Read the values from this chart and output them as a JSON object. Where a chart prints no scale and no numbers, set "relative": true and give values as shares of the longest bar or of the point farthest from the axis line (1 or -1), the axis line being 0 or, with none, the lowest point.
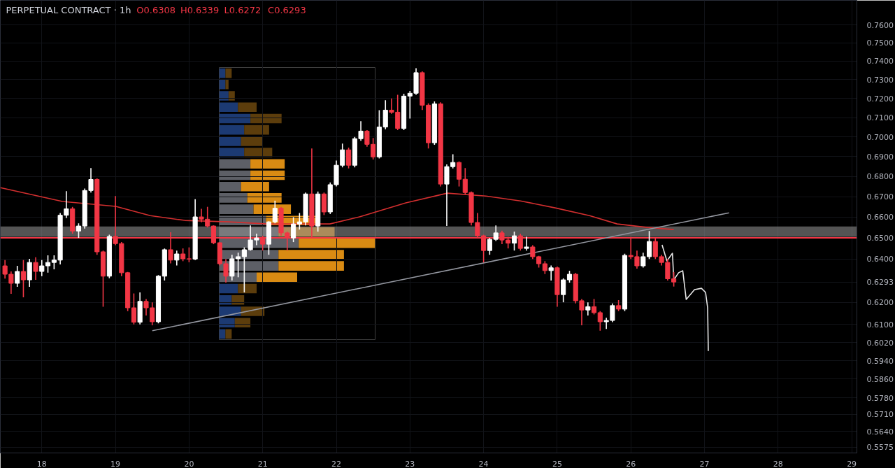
{
  "chart_data": [
    {
      "type": "candlestick",
      "title": "PERPETUAL CONTRACT · 1h",
      "annotations": [
        "O0.6308",
        "H0.6339",
        "L0.6272",
        "C0.6293"
      ],
      "x": [
        17.5,
        17.583,
        17.667,
        17.75,
        17.833,
        17.917,
        18,
        18.083,
        18.167,
        18.25,
        18.333,
        18.417,
        18.5,
        18.583,
        18.667,
        18.75,
        18.833,
        18.917,
        19,
        19.083,
        19.167,
        19.25,
        19.333,
        19.417,
        19.5,
        19.583,
        19.667,
        19.75,
        19.833,
        19.917,
        20,
        20.083,
        20.167,
        20.25,
        20.333,
        20.417,
        20.5,
        20.583,
        20.667,
        20.75,
        20.833,
        20.917,
        21,
        21.083,
        21.167,
        21.25,
        21.333,
        21.417,
        21.5,
        21.583,
        21.667,
        21.75,
        21.833,
        21.917,
        22,
        22.083,
        22.167,
        22.25,
        22.333,
        22.417,
        22.5,
        22.583,
        22.667,
        22.75,
        22.833,
        22.917,
        23,
        23.083,
        23.167,
        23.25,
        23.333,
        23.417,
        23.5,
        23.583,
        23.667,
        23.75,
        23.833,
        23.917,
        24,
        24.083,
        24.167,
        24.25,
        24.333,
        24.417,
        24.5,
        24.583,
        24.667,
        24.75,
        24.833,
        24.917,
        25,
        25.083,
        25.167,
        25.25,
        25.333,
        25.417,
        25.5,
        25.583,
        25.667,
        25.75,
        25.833,
        25.917,
        26,
        26.083,
        26.167,
        26.25,
        26.333,
        26.417,
        26.5,
        26.583
      ],
      "ohlc": [
        [
          0.6368,
          0.6395,
          0.6309,
          0.6329
        ],
        [
          0.6329,
          0.6342,
          0.6239,
          0.6287
        ],
        [
          0.6287,
          0.6368,
          0.6271,
          0.6342
        ],
        [
          0.6342,
          0.6395,
          0.6223,
          0.6303
        ],
        [
          0.6303,
          0.6401,
          0.6271,
          0.6384
        ],
        [
          0.6384,
          0.6408,
          0.6303,
          0.6342
        ],
        [
          0.6342,
          0.6395,
          0.632,
          0.6368
        ],
        [
          0.6368,
          0.6417,
          0.6336,
          0.6384
        ],
        [
          0.6384,
          0.6417,
          0.6352,
          0.6395
        ],
        [
          0.6395,
          0.662,
          0.6375,
          0.6609
        ],
        [
          0.6609,
          0.6727,
          0.6595,
          0.664
        ],
        [
          0.664,
          0.665,
          0.652,
          0.6533
        ],
        [
          0.6533,
          0.657,
          0.65,
          0.6557
        ],
        [
          0.6557,
          0.674,
          0.6545,
          0.673
        ],
        [
          0.673,
          0.6842,
          0.672,
          0.6785
        ],
        [
          0.6785,
          0.679,
          0.642,
          0.6434
        ],
        [
          0.6434,
          0.644,
          0.618,
          0.632
        ],
        [
          0.632,
          0.6515,
          0.631,
          0.6507
        ],
        [
          0.6507,
          0.6703,
          0.6465,
          0.6473
        ],
        [
          0.6473,
          0.648,
          0.632,
          0.6336
        ],
        [
          0.6336,
          0.634,
          0.616,
          0.6175
        ],
        [
          0.6175,
          0.624,
          0.61,
          0.611
        ],
        [
          0.611,
          0.6245,
          0.61,
          0.6204
        ],
        [
          0.6204,
          0.6215,
          0.614,
          0.6175
        ],
        [
          0.6175,
          0.62,
          0.6096,
          0.6112
        ],
        [
          0.6112,
          0.6325,
          0.6105,
          0.632
        ],
        [
          0.632,
          0.645,
          0.63,
          0.6444
        ],
        [
          0.6444,
          0.6527,
          0.638,
          0.6395
        ],
        [
          0.6395,
          0.644,
          0.637,
          0.6424
        ],
        [
          0.6424,
          0.645,
          0.639,
          0.6401
        ],
        [
          0.6401,
          0.6455,
          0.6385,
          0.64
        ],
        [
          0.64,
          0.6687,
          0.6395,
          0.6601
        ],
        [
          0.6601,
          0.664,
          0.6575,
          0.659
        ],
        [
          0.659,
          0.665,
          0.655,
          0.6557
        ],
        [
          0.6557,
          0.656,
          0.647,
          0.6477
        ],
        [
          0.6477,
          0.648,
          0.637,
          0.6378
        ],
        [
          0.6378,
          0.64,
          0.629,
          0.632
        ],
        [
          0.632,
          0.642,
          0.63,
          0.6401
        ],
        [
          0.6401,
          0.643,
          0.6315,
          0.6411
        ],
        [
          0.6411,
          0.6455,
          0.6245,
          0.6444
        ],
        [
          0.6444,
          0.656,
          0.644,
          0.649
        ],
        [
          0.649,
          0.652,
          0.6465,
          0.65
        ],
        [
          0.65,
          0.651,
          0.644,
          0.647
        ],
        [
          0.647,
          0.658,
          0.642,
          0.6577
        ],
        [
          0.6577,
          0.668,
          0.657,
          0.6643
        ],
        [
          0.6643,
          0.665,
          0.651,
          0.6524
        ],
        [
          0.6524,
          0.653,
          0.644,
          0.65
        ],
        [
          0.65,
          0.66,
          0.648,
          0.6567
        ],
        [
          0.6567,
          0.662,
          0.654,
          0.6577
        ],
        [
          0.6577,
          0.672,
          0.656,
          0.6713
        ],
        [
          0.6713,
          0.6941,
          0.65,
          0.6557
        ],
        [
          0.6557,
          0.6725,
          0.653,
          0.6713
        ],
        [
          0.6713,
          0.672,
          0.661,
          0.6625
        ],
        [
          0.6625,
          0.677,
          0.6615,
          0.6759
        ],
        [
          0.6759,
          0.688,
          0.675,
          0.6856
        ],
        [
          0.6856,
          0.6966,
          0.6845,
          0.6934
        ],
        [
          0.6934,
          0.6945,
          0.684,
          0.6856
        ],
        [
          0.6856,
          0.7,
          0.6845,
          0.6991
        ],
        [
          0.6991,
          0.7081,
          0.698,
          0.703
        ],
        [
          0.703,
          0.7035,
          0.695,
          0.6962
        ],
        [
          0.6962,
          0.6995,
          0.6885,
          0.6898
        ],
        [
          0.6898,
          0.7139,
          0.689,
          0.7051
        ],
        [
          0.7051,
          0.7191,
          0.704,
          0.7139
        ],
        [
          0.7139,
          0.72,
          0.712,
          0.7128
        ],
        [
          0.7128,
          0.722,
          0.7035,
          0.7044
        ],
        [
          0.7044,
          0.7225,
          0.7035,
          0.7213
        ],
        [
          0.7213,
          0.724,
          0.7095,
          0.7228
        ],
        [
          0.7228,
          0.7362,
          0.722,
          0.7338
        ],
        [
          0.7338,
          0.7345,
          0.714,
          0.7165
        ],
        [
          0.7165,
          0.7175,
          0.6941,
          0.697
        ],
        [
          0.697,
          0.7185,
          0.696,
          0.7172
        ],
        [
          0.7172,
          0.718,
          0.675,
          0.6762
        ],
        [
          0.6762,
          0.686,
          0.6557,
          0.6849
        ],
        [
          0.6849,
          0.6912,
          0.684,
          0.687
        ],
        [
          0.687,
          0.6875,
          0.675,
          0.6786
        ],
        [
          0.6786,
          0.6842,
          0.671,
          0.672
        ],
        [
          0.672,
          0.6725,
          0.656,
          0.6574
        ],
        [
          0.6574,
          0.662,
          0.65,
          0.651
        ],
        [
          0.651,
          0.6515,
          0.6384,
          0.644
        ],
        [
          0.644,
          0.65,
          0.642,
          0.6493
        ],
        [
          0.6493,
          0.656,
          0.6485,
          0.6524
        ],
        [
          0.6524,
          0.6535,
          0.647,
          0.649
        ],
        [
          0.649,
          0.6505,
          0.645,
          0.6475
        ],
        [
          0.6475,
          0.653,
          0.644,
          0.651
        ],
        [
          0.651,
          0.652,
          0.644,
          0.645
        ],
        [
          0.645,
          0.6505,
          0.644,
          0.6457
        ],
        [
          0.6457,
          0.6465,
          0.64,
          0.6411
        ],
        [
          0.6411,
          0.6415,
          0.636,
          0.6378
        ],
        [
          0.6378,
          0.639,
          0.633,
          0.6346
        ],
        [
          0.6346,
          0.637,
          0.63,
          0.6359
        ],
        [
          0.6359,
          0.6365,
          0.618,
          0.6235
        ],
        [
          0.6235,
          0.631,
          0.62,
          0.6303
        ],
        [
          0.6303,
          0.6345,
          0.629,
          0.6329
        ],
        [
          0.6329,
          0.6335,
          0.6195,
          0.6207
        ],
        [
          0.6207,
          0.6215,
          0.6096,
          0.6165
        ],
        [
          0.6165,
          0.62,
          0.614,
          0.618
        ],
        [
          0.618,
          0.6215,
          0.6145,
          0.6153
        ],
        [
          0.6153,
          0.616,
          0.6072,
          0.6112
        ],
        [
          0.6112,
          0.613,
          0.608,
          0.6118
        ],
        [
          0.6118,
          0.6195,
          0.611,
          0.6185
        ],
        [
          0.6185,
          0.621,
          0.616,
          0.6169
        ],
        [
          0.6169,
          0.6425,
          0.616,
          0.6417
        ],
        [
          0.6417,
          0.6505,
          0.64,
          0.6411
        ],
        [
          0.6411,
          0.644,
          0.6355,
          0.6368
        ],
        [
          0.6368,
          0.643,
          0.636,
          0.6411
        ],
        [
          0.6411,
          0.6533,
          0.64,
          0.6483
        ],
        [
          0.6483,
          0.65,
          0.64,
          0.6411
        ],
        [
          0.6411,
          0.642,
          0.637,
          0.6384
        ],
        [
          0.6384,
          0.64,
          0.63,
          0.6308
        ],
        [
          0.6308,
          0.6339,
          0.6272,
          0.6293
        ]
      ],
      "colors": [
        "#f23645",
        "#f23645",
        "#ffffff",
        "#f23645",
        "#ffffff",
        "#f23645",
        "#ffffff",
        "#ffffff",
        "#ffffff",
        "#ffffff",
        "#ffffff",
        "#f23645",
        "#ffffff",
        "#ffffff",
        "#ffffff",
        "#f23645",
        "#f23645",
        "#ffffff",
        "#f23645",
        "#f23645",
        "#f23645",
        "#f23645",
        "#ffffff",
        "#f23645",
        "#f23645",
        "#ffffff",
        "#ffffff",
        "#f23645",
        "#ffffff",
        "#f23645",
        "#f23645",
        "#ffffff",
        "#f23645",
        "#f23645",
        "#f23645",
        "#f23645",
        "#f23645",
        "#ffffff",
        "#ffffff",
        "#ffffff",
        "#ffffff",
        "#ffffff",
        "#f23645",
        "#ffffff",
        "#ffffff",
        "#f23645",
        "#f23645",
        "#ffffff",
        "#ffffff",
        "#ffffff",
        "#f23645",
        "#ffffff",
        "#f23645",
        "#ffffff",
        "#ffffff",
        "#ffffff",
        "#f23645",
        "#ffffff",
        "#ffffff",
        "#f23645",
        "#f23645",
        "#ffffff",
        "#ffffff",
        "#f23645",
        "#f23645",
        "#ffffff",
        "#ffffff",
        "#ffffff",
        "#f23645",
        "#f23645",
        "#ffffff",
        "#f23645",
        "#ffffff",
        "#ffffff",
        "#f23645",
        "#f23645",
        "#f23645",
        "#f23645",
        "#f23645",
        "#ffffff",
        "#ffffff",
        "#f23645",
        "#f23645",
        "#ffffff",
        "#f23645",
        "#ffffff",
        "#f23645",
        "#f23645",
        "#f23645",
        "#ffffff",
        "#f23645",
        "#ffffff",
        "#ffffff",
        "#f23645",
        "#f23645",
        "#ffffff",
        "#f23645",
        "#f23645",
        "#ffffff",
        "#ffffff",
        "#f23645",
        "#ffffff",
        "#f23645",
        "#f23645",
        "#ffffff",
        "#ffffff",
        "#f23645",
        "#f23645",
        "#f23645",
        "#f23645"
      ],
      "series": [
        {
          "type": "line",
          "color": "#d32f2f",
          "x": [
            17.437,
            18.281,
            19.004,
            19.473,
            19.942,
            20.533,
            21.068,
            21.912,
            22.315,
            22.944,
            23.507,
            24.032,
            24.501,
            24.97,
            25.439,
            25.814,
            26.227,
            26.583
          ],
          "values": [
            0.6744,
            0.6676,
            0.6652,
            0.6607,
            0.6584,
            0.6577,
            0.6567,
            0.6567,
            0.6601,
            0.6669,
            0.6717,
            0.6703,
            0.6679,
            0.6645,
            0.6607,
            0.6567,
            0.655,
            0.654
          ]
        },
        {
          "type": "line",
          "color": "#9598a1",
          "x": [
            19.501,
            27.334
          ],
          "values": [
            0.6072,
            0.6621
          ]
        },
        {
          "type": "line",
          "color": "#e6e6e6",
          "x": [
            26.424,
            26.49,
            26.565,
            26.583,
            26.649,
            26.705,
            26.752,
            26.865,
            26.959,
            27.015,
            27.043,
            27.052
          ],
          "values": [
            0.6467,
            0.6391,
            0.6427,
            0.6303,
            0.6336,
            0.6345,
            0.6213,
            0.6258,
            0.6264,
            0.6245,
            0.6175,
            0.5982
          ]
        }
      ],
      "bands": [
        {
          "axis": "y",
          "from": 0.6505,
          "to": 0.6555,
          "color": "#8c8c8c"
        }
      ],
      "ref_lines": [
        {
          "axis": "y",
          "value": 0.65,
          "color": "#f23645"
        }
      ],
      "xlim": [
        17.437,
        29.07
      ],
      "xticks": [
        18,
        19,
        20,
        21,
        22,
        23,
        24,
        25,
        26,
        27,
        28,
        29
      ],
      "ylim": [
        0.5551,
        0.7738
      ],
      "yticks": [
        {
          "value": 0.76,
          "label": "0.7600"
        },
        {
          "value": 0.75,
          "label": "0.7500"
        },
        {
          "value": 0.74,
          "label": "0.7400"
        },
        {
          "value": 0.73,
          "label": "0.7300"
        },
        {
          "value": 0.72,
          "label": "0.7200"
        },
        {
          "value": 0.71,
          "label": "0.7100"
        },
        {
          "value": 0.7,
          "label": "0.7000"
        },
        {
          "value": 0.69,
          "label": "0.6900"
        },
        {
          "value": 0.68,
          "label": "0.6800"
        },
        {
          "value": 0.67,
          "label": "0.6700"
        },
        {
          "value": 0.66,
          "label": "0.6600"
        },
        {
          "value": 0.65,
          "label": "0.6500"
        },
        {
          "value": 0.64,
          "label": "0.6400"
        },
        {
          "value": 0.6293,
          "label": "0.6293"
        },
        {
          "value": 0.62,
          "label": "0.6200"
        },
        {
          "value": 0.61,
          "label": "0.6100"
        },
        {
          "value": 0.602,
          "label": "0.6020"
        },
        {
          "value": 0.594,
          "label": "0.5940"
        },
        {
          "value": 0.586,
          "label": "0.5860"
        },
        {
          "value": 0.578,
          "label": "0.5780"
        },
        {
          "value": 0.571,
          "label": "0.5710"
        },
        {
          "value": 0.564,
          "label": "0.5640"
        },
        {
          "value": 0.5575,
          "label": "0.5575"
        }
      ],
      "log": "y",
      "grid": true
    },
    {
      "type": "bar",
      "orientation": "horizontal",
      "stacked": true,
      "relative": true,
      "categories": [
        null,
        null,
        null,
        null,
        null,
        null,
        null,
        null,
        null,
        null,
        null,
        null,
        null,
        null,
        null,
        null,
        null,
        null,
        null,
        null,
        null,
        null,
        null,
        null
      ],
      "series": [
        {
          "values": [
            0.04,
            0.04,
            0.06,
            0.12,
            0.2,
            0.16,
            0.14,
            0.16,
            0.2,
            0.2,
            0.14,
            0.18,
            0.22,
            0.3,
            0.38,
            0.51,
            0.38,
            0.38,
            0.24,
            0.12,
            0.08,
            0.14,
            0.1,
            0.04
          ],
          "colors": [
            "#1c3a73",
            "#1c3a73",
            "#1c3a73",
            "#1c3a73",
            "#1c3a73",
            "#1c3a73",
            "#1c3a73",
            "#1c3a73",
            "#5d5f66",
            "#5d5f66",
            "#5d5f66",
            "#5d5f66",
            "#5d5f66",
            "#5d5f66",
            "#5d5f66",
            "#5d5f66",
            "#5d5f66",
            "#5d5f66",
            "#5d5f66",
            "#1c3a73",
            "#1c3a73",
            "#1c3a73",
            "#1c3a73",
            "#1c3a73"
          ]
        },
        {
          "values": [
            0.04,
            0.02,
            0.04,
            0.12,
            0.2,
            0.16,
            0.14,
            0.18,
            0.22,
            0.22,
            0.18,
            0.22,
            0.24,
            0.32,
            0.36,
            0.49,
            0.42,
            0.42,
            0.26,
            0.12,
            0.08,
            0.15,
            0.1,
            0.04
          ],
          "colors": [
            "#5c3d0c",
            "#5c3d0c",
            "#5c3d0c",
            "#5c3d0c",
            "#5c3d0c",
            "#5c3d0c",
            "#5c3d0c",
            "#5c3d0c",
            "#d98b13",
            "#d98b13",
            "#d98b13",
            "#d98b13",
            "#d98b13",
            "#d98b13",
            "#d98b13",
            "#d98b13",
            "#d98b13",
            "#d98b13",
            "#d98b13",
            "#5c3d0c",
            "#5c3d0c",
            "#5c3d0c",
            "#5c3d0c",
            "#5c3d0c"
          ]
        }
      ]
    }
  ]
}
